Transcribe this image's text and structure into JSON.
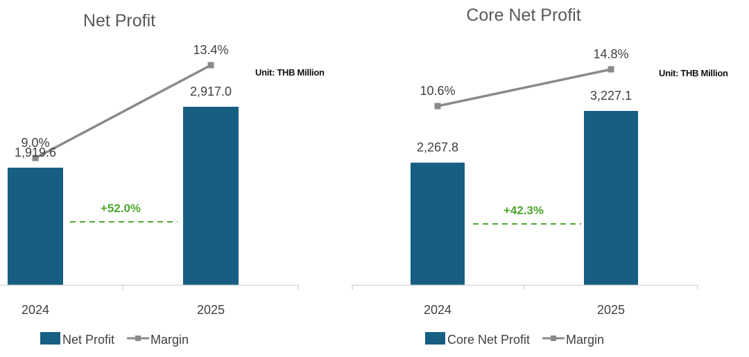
{
  "colors": {
    "bar": "#175f82",
    "line": "#8a8a8a",
    "growth": "#4ea72e",
    "axis": "#d9d9d9",
    "text": "#404040",
    "title": "#595959"
  },
  "chart_data": [
    {
      "type": "bar",
      "title": "Net Profit",
      "unit_label": "Unit: THB Million",
      "categories": [
        "2024",
        "2025"
      ],
      "series": [
        {
          "name": "Net Profit",
          "kind": "bar",
          "values": [
            1919.6,
            2917.0
          ],
          "labels": [
            "1,919.6",
            "2,917.0"
          ]
        },
        {
          "name": "Margin",
          "kind": "line",
          "values": [
            9.0,
            13.4
          ],
          "labels": [
            "9.0%",
            "13.4%"
          ]
        }
      ],
      "growth_label": "+52.0%",
      "legend": [
        "Net Profit",
        "Margin"
      ],
      "legend_position": "bottom",
      "grid": false,
      "xlabel": "",
      "ylabel": ""
    },
    {
      "type": "bar",
      "title": "Core Net Profit",
      "unit_label": "Unit: THB Million",
      "categories": [
        "2024",
        "2025"
      ],
      "series": [
        {
          "name": "Core Net Profit",
          "kind": "bar",
          "values": [
            2267.8,
            3227.1
          ],
          "labels": [
            "2,267.8",
            "3,227.1"
          ]
        },
        {
          "name": "Margin",
          "kind": "line",
          "values": [
            10.6,
            14.8
          ],
          "labels": [
            "10.6%",
            "14.8%"
          ]
        }
      ],
      "growth_label": "+42.3%",
      "legend": [
        "Core Net Profit",
        "Margin"
      ],
      "legend_position": "bottom",
      "grid": false,
      "xlabel": "",
      "ylabel": ""
    }
  ]
}
